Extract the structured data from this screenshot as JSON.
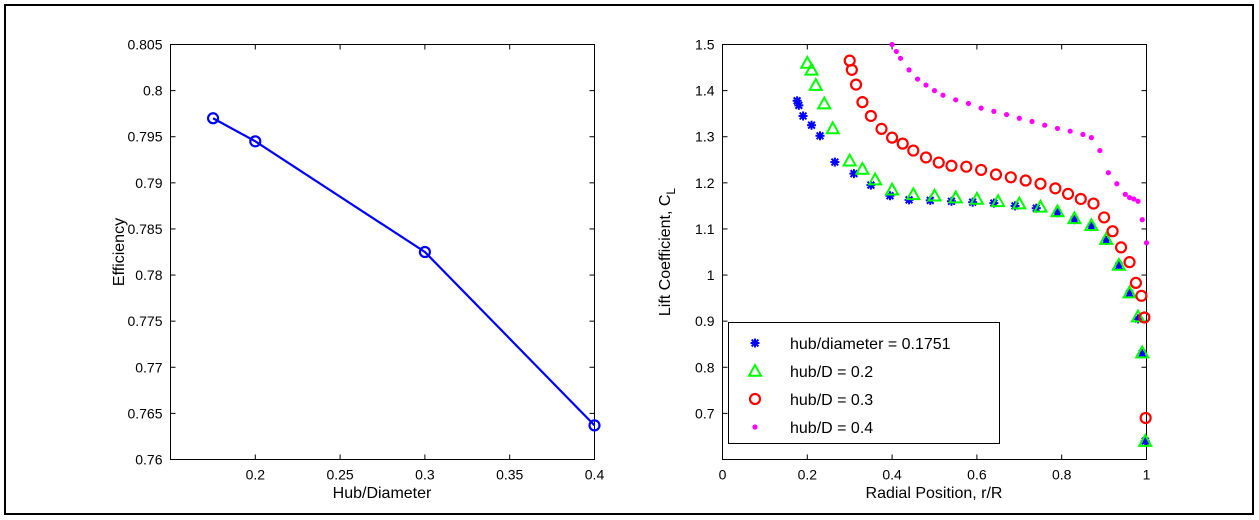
{
  "chart_data": [
    {
      "type": "line",
      "xlabel": "Hub/Diameter",
      "ylabel": "Efficiency",
      "xlim": [
        0.15,
        0.4
      ],
      "ylim": [
        0.76,
        0.805
      ],
      "xticks": [
        "0.2",
        "0.25",
        "0.3",
        "0.35",
        "0.4"
      ],
      "yticks": [
        "0.76",
        "0.765",
        "0.77",
        "0.775",
        "0.78",
        "0.785",
        "0.79",
        "0.795",
        "0.8",
        "0.805"
      ],
      "grid": false,
      "color": "#0000ff",
      "marker": "circle",
      "series": [
        {
          "x": [
            0.1751,
            0.2,
            0.3,
            0.4
          ],
          "y": [
            0.797,
            0.7945,
            0.7825,
            0.7637
          ]
        }
      ]
    },
    {
      "type": "scatter",
      "xlabel": "Radial Position, r/R",
      "ylabel": "Lift Coefficient, C",
      "ylabel_subscript": "L",
      "xlim": [
        0,
        1
      ],
      "ylim": [
        0.6,
        1.5
      ],
      "xticks": [
        "0",
        "0.2",
        "0.4",
        "0.6",
        "0.8",
        "1"
      ],
      "yticks": [
        "0.7",
        "0.8",
        "0.9",
        "1",
        "1.1",
        "1.2",
        "1.3",
        "1.4",
        "1.5"
      ],
      "grid": false,
      "legend_position": "bottom-left",
      "series": [
        {
          "name": "hub/diameter = 0.1751",
          "color": "#0000ff",
          "marker": "star",
          "x": [
            0.176,
            0.18,
            0.19,
            0.21,
            0.23,
            0.265,
            0.31,
            0.35,
            0.395,
            0.44,
            0.49,
            0.54,
            0.59,
            0.64,
            0.69,
            0.74,
            0.79,
            0.83,
            0.87,
            0.905,
            0.935,
            0.96,
            0.98,
            0.99,
            0.997
          ],
          "y": [
            1.378,
            1.368,
            1.345,
            1.325,
            1.302,
            1.245,
            1.22,
            1.195,
            1.172,
            1.163,
            1.162,
            1.16,
            1.158,
            1.156,
            1.15,
            1.145,
            1.135,
            1.12,
            1.105,
            1.075,
            1.02,
            0.96,
            0.905,
            0.83,
            0.64
          ]
        },
        {
          "name": "hub/D = 0.2",
          "color": "#00ff00",
          "marker": "triangle",
          "x": [
            0.2,
            0.21,
            0.22,
            0.24,
            0.26,
            0.3,
            0.33,
            0.36,
            0.4,
            0.45,
            0.5,
            0.55,
            0.6,
            0.65,
            0.7,
            0.75,
            0.79,
            0.83,
            0.87,
            0.905,
            0.935,
            0.96,
            0.98,
            0.99,
            0.997
          ],
          "y": [
            1.46,
            1.445,
            1.412,
            1.372,
            1.318,
            1.248,
            1.23,
            1.207,
            1.185,
            1.175,
            1.172,
            1.168,
            1.165,
            1.16,
            1.155,
            1.148,
            1.138,
            1.123,
            1.108,
            1.078,
            1.022,
            0.962,
            0.91,
            0.832,
            0.64
          ]
        },
        {
          "name": "hub/D = 0.3",
          "color": "#ff0000",
          "marker": "circle",
          "x": [
            0.3,
            0.305,
            0.315,
            0.33,
            0.35,
            0.375,
            0.4,
            0.425,
            0.45,
            0.48,
            0.51,
            0.54,
            0.575,
            0.61,
            0.645,
            0.68,
            0.715,
            0.75,
            0.785,
            0.815,
            0.845,
            0.875,
            0.9,
            0.92,
            0.94,
            0.96,
            0.975,
            0.988,
            0.995,
            0.998
          ],
          "y": [
            1.465,
            1.445,
            1.413,
            1.375,
            1.345,
            1.317,
            1.298,
            1.285,
            1.27,
            1.255,
            1.244,
            1.237,
            1.235,
            1.228,
            1.218,
            1.212,
            1.205,
            1.198,
            1.188,
            1.176,
            1.165,
            1.155,
            1.125,
            1.095,
            1.06,
            1.028,
            0.983,
            0.955,
            0.908,
            0.69
          ]
        },
        {
          "name": "hub/D = 0.4",
          "color": "#ff00ff",
          "marker": "dot",
          "x": [
            0.4,
            0.41,
            0.42,
            0.44,
            0.46,
            0.48,
            0.5,
            0.52,
            0.55,
            0.58,
            0.61,
            0.64,
            0.67,
            0.7,
            0.73,
            0.76,
            0.79,
            0.82,
            0.85,
            0.87,
            0.89,
            0.91,
            0.93,
            0.95,
            0.96,
            0.97,
            0.98,
            0.99,
            1.0
          ],
          "y": [
            1.5,
            1.485,
            1.47,
            1.445,
            1.425,
            1.412,
            1.4,
            1.39,
            1.38,
            1.372,
            1.362,
            1.355,
            1.348,
            1.34,
            1.333,
            1.325,
            1.318,
            1.312,
            1.305,
            1.298,
            1.27,
            1.222,
            1.198,
            1.175,
            1.168,
            1.165,
            1.16,
            1.12,
            1.07
          ]
        }
      ]
    }
  ]
}
